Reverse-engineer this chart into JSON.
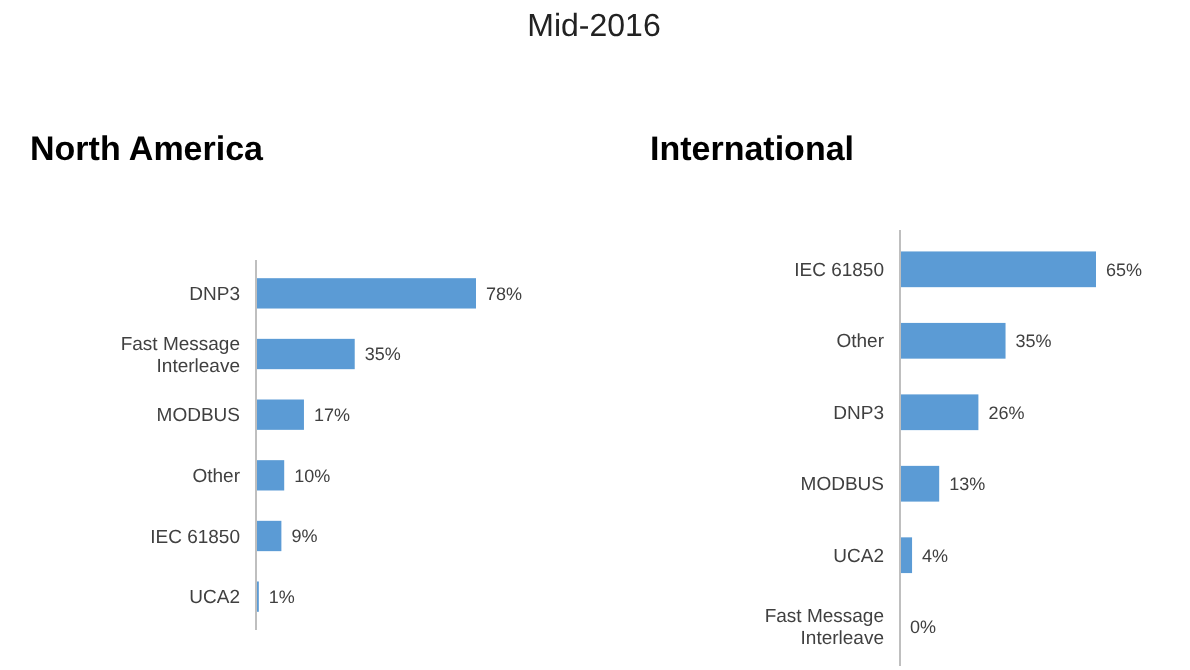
{
  "chart_data": [
    {
      "type": "bar",
      "orientation": "horizontal",
      "title": "North America",
      "annotations": [
        "Mid-2016"
      ],
      "categories": [
        "DNP3",
        "Fast Message Interleave",
        "MODBUS",
        "Other",
        "IEC 61850",
        "UCA2"
      ],
      "values": [
        78,
        35,
        17,
        10,
        9,
        1
      ],
      "value_labels": [
        "78%",
        "35%",
        "17%",
        "10%",
        "9%",
        "1%"
      ],
      "color": "#5b9bd5"
    },
    {
      "type": "bar",
      "orientation": "horizontal",
      "title": "International",
      "categories": [
        "IEC 61850",
        "Other",
        "DNP3",
        "MODBUS",
        "UCA2",
        "Fast Message Interleave"
      ],
      "values": [
        65,
        35,
        26,
        13,
        4,
        0
      ],
      "value_labels": [
        "65%",
        "35%",
        "26%",
        "13%",
        "4%",
        "0%"
      ],
      "color": "#5b9bd5"
    }
  ]
}
